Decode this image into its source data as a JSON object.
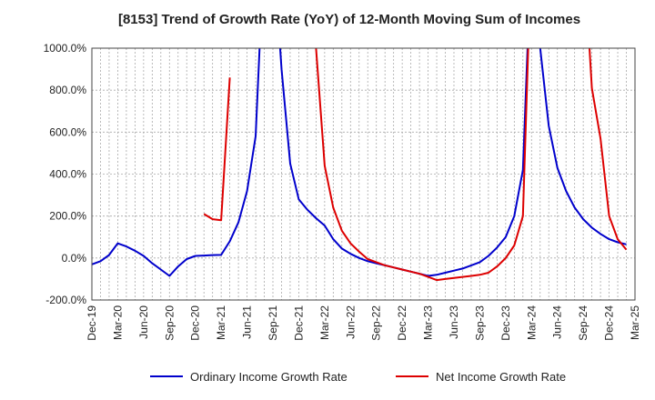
{
  "chart_data": {
    "type": "line",
    "title": "[8153]  Trend of Growth Rate (YoY) of 12-Month Moving Sum of Incomes",
    "xlabel": "",
    "ylabel": "",
    "x_tick_labels": [
      "Dec-19",
      "Mar-20",
      "Jun-20",
      "Sep-20",
      "Dec-20",
      "Mar-21",
      "Jun-21",
      "Sep-21",
      "Dec-21",
      "Mar-22",
      "Jun-22",
      "Sep-22",
      "Dec-22",
      "Mar-23",
      "Jun-23",
      "Sep-23",
      "Dec-23",
      "Mar-24",
      "Jun-24",
      "Sep-24",
      "Dec-24",
      "Mar-25"
    ],
    "y_tick_labels": [
      "1000.0%",
      "800.0%",
      "600.0%",
      "400.0%",
      "200.0%",
      "0.0%",
      "-200.0%"
    ],
    "y_ticks": [
      1000,
      800,
      600,
      400,
      200,
      0,
      -200
    ],
    "ylim": [
      -200,
      1000
    ],
    "x_start_month_index": 0,
    "x_end_month_index": 63,
    "grid": true,
    "legend_position": "bottom",
    "series": [
      {
        "name": "Ordinary Income Growth Rate",
        "color": "#0000cc",
        "points": [
          [
            0,
            -30
          ],
          [
            1,
            -15
          ],
          [
            2,
            15
          ],
          [
            3,
            70
          ],
          [
            4,
            55
          ],
          [
            5,
            35
          ],
          [
            6,
            10
          ],
          [
            7,
            -25
          ],
          [
            8,
            -55
          ],
          [
            9,
            -85
          ],
          [
            10,
            -40
          ],
          [
            11,
            -5
          ],
          [
            12,
            10
          ],
          [
            13,
            12
          ],
          [
            14,
            14
          ],
          [
            15,
            15
          ],
          [
            16,
            80
          ],
          [
            17,
            170
          ],
          [
            18,
            320
          ],
          [
            19,
            580
          ],
          [
            20,
            1500
          ],
          [
            21,
            1500
          ],
          [
            22,
            900
          ],
          [
            23,
            450
          ],
          [
            24,
            280
          ],
          [
            25,
            230
          ],
          [
            26,
            190
          ],
          [
            27,
            155
          ],
          [
            28,
            90
          ],
          [
            29,
            45
          ],
          [
            30,
            20
          ],
          [
            31,
            0
          ],
          [
            32,
            -15
          ],
          [
            33,
            -25
          ],
          [
            34,
            -35
          ],
          [
            35,
            -45
          ],
          [
            36,
            -55
          ],
          [
            37,
            -65
          ],
          [
            38,
            -75
          ],
          [
            39,
            -85
          ],
          [
            40,
            -80
          ],
          [
            41,
            -70
          ],
          [
            42,
            -60
          ],
          [
            43,
            -50
          ],
          [
            44,
            -35
          ],
          [
            45,
            -20
          ],
          [
            46,
            10
          ],
          [
            47,
            50
          ],
          [
            48,
            100
          ],
          [
            49,
            200
          ],
          [
            50,
            420
          ],
          [
            51,
            1500
          ],
          [
            52,
            1000
          ],
          [
            53,
            630
          ],
          [
            54,
            430
          ],
          [
            55,
            320
          ],
          [
            56,
            240
          ],
          [
            57,
            185
          ],
          [
            58,
            145
          ],
          [
            59,
            115
          ],
          [
            60,
            90
          ],
          [
            61,
            75
          ],
          [
            62,
            65
          ]
        ]
      },
      {
        "name": "Net Income Growth Rate",
        "color": "#dd0000",
        "points_segments": [
          [
            [
              13,
              210
            ],
            [
              14,
              185
            ],
            [
              15,
              180
            ],
            [
              16,
              860
            ]
          ],
          [
            [
              25,
              1500
            ],
            [
              26,
              1000
            ],
            [
              27,
              440
            ],
            [
              28,
              240
            ],
            [
              29,
              130
            ],
            [
              30,
              70
            ],
            [
              31,
              30
            ],
            [
              32,
              -5
            ],
            [
              33,
              -20
            ],
            [
              34,
              -35
            ],
            [
              35,
              -45
            ],
            [
              36,
              -55
            ],
            [
              37,
              -65
            ],
            [
              38,
              -75
            ],
            [
              39,
              -90
            ],
            [
              40,
              -105
            ],
            [
              41,
              -100
            ],
            [
              42,
              -95
            ],
            [
              43,
              -90
            ],
            [
              44,
              -85
            ],
            [
              45,
              -80
            ],
            [
              46,
              -70
            ],
            [
              47,
              -40
            ],
            [
              48,
              0
            ],
            [
              49,
              60
            ],
            [
              50,
              200
            ],
            [
              51,
              1500
            ]
          ],
          [
            [
              57,
              1500
            ],
            [
              58,
              810
            ],
            [
              59,
              570
            ],
            [
              60,
              200
            ],
            [
              61,
              90
            ],
            [
              62,
              40
            ]
          ]
        ]
      }
    ]
  }
}
